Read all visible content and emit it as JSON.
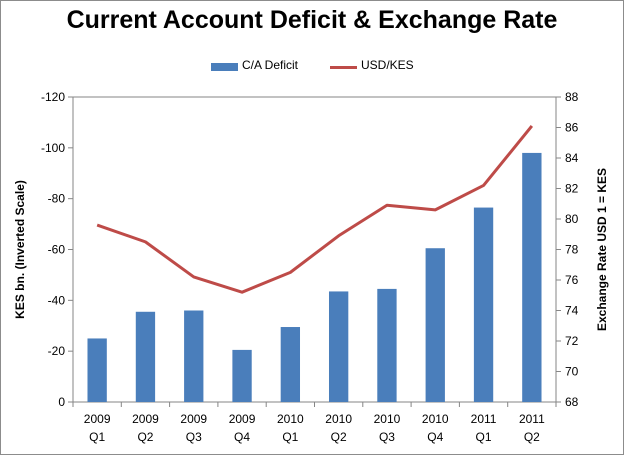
{
  "chart_data": {
    "type": "bar+line",
    "title": "Current Account Deficit & Exchange Rate",
    "categories": [
      [
        "2009",
        "Q1"
      ],
      [
        "2009",
        "Q2"
      ],
      [
        "2009",
        "Q3"
      ],
      [
        "2009",
        "Q4"
      ],
      [
        "2010",
        "Q1"
      ],
      [
        "2010",
        "Q2"
      ],
      [
        "2010",
        "Q3"
      ],
      [
        "2010",
        "Q4"
      ],
      [
        "2011",
        "Q1"
      ],
      [
        "2011",
        "Q2"
      ]
    ],
    "series": [
      {
        "name": "C/A Deficit",
        "type": "bar",
        "axis": "left",
        "color": "#4a7ebb",
        "values": [
          -25,
          -35.5,
          -36,
          -20.5,
          -29.5,
          -43.5,
          -44.5,
          -60.5,
          -76.5,
          -98
        ]
      },
      {
        "name": "USD/KES",
        "type": "line",
        "axis": "right",
        "color": "#be4b48",
        "values": [
          79.6,
          78.5,
          76.2,
          75.2,
          76.5,
          78.9,
          80.9,
          80.6,
          82.2,
          86.1
        ]
      }
    ],
    "left_axis": {
      "label": "KES bn. (Inverted Scale)",
      "range": [
        0,
        -120
      ],
      "inverted": true,
      "ticks": [
        "-120",
        "-100",
        "-80",
        "-60",
        "-40",
        "-20",
        "0"
      ],
      "tick_values": [
        -120,
        -100,
        -80,
        -60,
        -40,
        -20,
        0
      ]
    },
    "right_axis": {
      "label": "Exchange Rate USD 1 = KES",
      "range": [
        68,
        88
      ],
      "ticks": [
        "88",
        "86",
        "84",
        "82",
        "80",
        "78",
        "76",
        "74",
        "72",
        "70",
        "68"
      ],
      "tick_values": [
        88,
        86,
        84,
        82,
        80,
        78,
        76,
        74,
        72,
        70,
        68
      ]
    },
    "grid": false,
    "legend": "top"
  }
}
